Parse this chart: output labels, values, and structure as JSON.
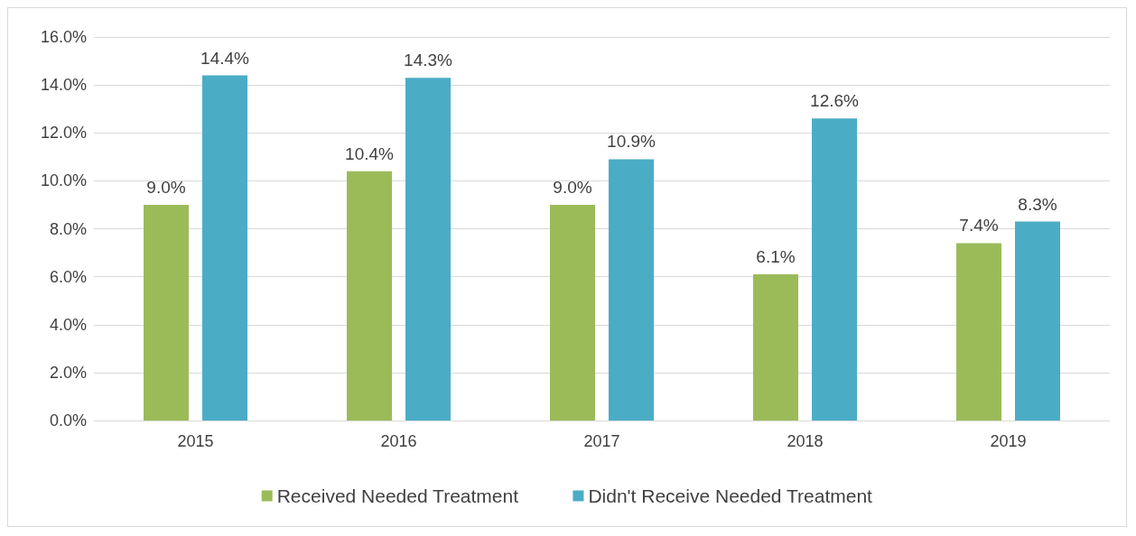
{
  "chart_data": {
    "type": "bar",
    "categories": [
      "2015",
      "2016",
      "2017",
      "2018",
      "2019"
    ],
    "series": [
      {
        "name": "Received Needed Treatment",
        "color": "#9bbb59",
        "values": [
          9.0,
          10.4,
          9.0,
          6.1,
          7.4
        ],
        "value_labels": [
          "9.0%",
          "10.4%",
          "9.0%",
          "6.1%",
          "7.4%"
        ]
      },
      {
        "name": "Didn't Receive Needed Treatment",
        "color": "#4bacc6",
        "values": [
          14.4,
          14.3,
          10.9,
          12.6,
          8.3
        ],
        "value_labels": [
          "14.4%",
          "14.3%",
          "10.9%",
          "12.6%",
          "8.3%"
        ]
      }
    ],
    "ylim": [
      0,
      16
    ],
    "yticks": [
      {
        "value": 0,
        "label": "0.0%"
      },
      {
        "value": 2,
        "label": "2.0%"
      },
      {
        "value": 4,
        "label": "4.0%"
      },
      {
        "value": 6,
        "label": "6.0%"
      },
      {
        "value": 8,
        "label": "8.0%"
      },
      {
        "value": 10,
        "label": "10.0%"
      },
      {
        "value": 12,
        "label": "12.0%"
      },
      {
        "value": 14,
        "label": "14.0%"
      },
      {
        "value": 16,
        "label": "16.0%"
      }
    ],
    "grid": "y",
    "legend": "bottom"
  }
}
